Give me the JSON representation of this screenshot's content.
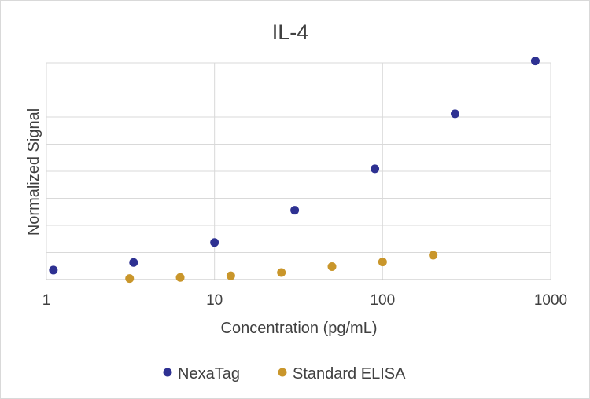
{
  "chart_data": {
    "type": "scatter",
    "title": "IL-4",
    "xlabel": "Concentration (pg/mL)",
    "ylabel": "Normalized Signal",
    "xscale": "log",
    "xlim": [
      1,
      1000
    ],
    "ylim": [
      0,
      8
    ],
    "xticks": [
      1,
      10,
      100,
      1000
    ],
    "xtick_labels": [
      "1",
      "10",
      "100",
      "1000"
    ],
    "grid": true,
    "legend_position": "bottom",
    "series": [
      {
        "name": "NexaTag",
        "color": "#2e3192",
        "points": [
          {
            "x": 1.1,
            "y": 0.35
          },
          {
            "x": 3.3,
            "y": 0.63
          },
          {
            "x": 10,
            "y": 1.37
          },
          {
            "x": 30,
            "y": 2.56
          },
          {
            "x": 90,
            "y": 4.09
          },
          {
            "x": 270,
            "y": 6.12
          },
          {
            "x": 810,
            "y": 8.07
          }
        ]
      },
      {
        "name": "Standard ELISA",
        "color": "#c9962b",
        "points": [
          {
            "x": 3.125,
            "y": 0.04
          },
          {
            "x": 6.25,
            "y": 0.08
          },
          {
            "x": 12.5,
            "y": 0.14
          },
          {
            "x": 25,
            "y": 0.26
          },
          {
            "x": 50,
            "y": 0.48
          },
          {
            "x": 100,
            "y": 0.65
          },
          {
            "x": 200,
            "y": 0.9
          }
        ]
      }
    ]
  }
}
